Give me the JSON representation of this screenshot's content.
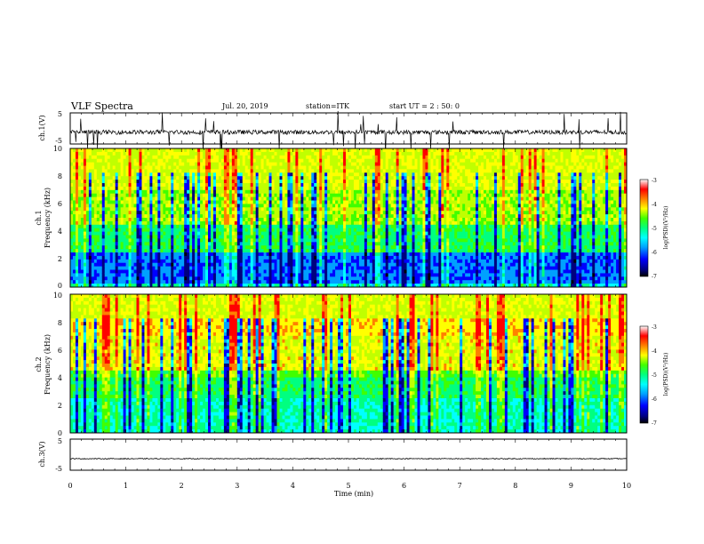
{
  "header": {
    "title": "VLF Spectra",
    "date": "Jul. 20, 2019",
    "station": "station=ITK",
    "start": "start UT = 2 : 50: 0"
  },
  "chart_data": [
    {
      "type": "line",
      "panel": "ch1-waveform",
      "ylabel": "ch.1(V)",
      "ylim": [
        -5,
        5
      ],
      "yticks": [
        "5",
        "-5"
      ],
      "xlim": [
        0,
        10
      ],
      "baseline": -1.2,
      "note": "noisy waveform with many impulsive spikes"
    },
    {
      "type": "heatmap",
      "panel": "ch1-spectrogram",
      "ylabel_line1": "ch.1",
      "ylabel_line2": "Frequency (kHz)",
      "ylim": [
        0,
        10
      ],
      "yticks": [
        "0",
        "2",
        "4",
        "6",
        "8",
        "10"
      ],
      "xlim": [
        0,
        10
      ],
      "colorbar": {
        "label": "log(PSD)(V²/Hz)",
        "range": [
          -7,
          -3
        ],
        "ticks": [
          "-3",
          "-4",
          "-5",
          "-6",
          "-7"
        ]
      }
    },
    {
      "type": "heatmap",
      "panel": "ch2-spectrogram",
      "ylabel_line1": "ch.2",
      "ylabel_line2": "Frequency (kHz)",
      "ylim": [
        0,
        10
      ],
      "yticks": [
        "0",
        "2",
        "4",
        "6",
        "8",
        "10"
      ],
      "xlim": [
        0,
        10
      ],
      "colorbar": {
        "label": "log(PSD)(V²/Hz)",
        "range": [
          -7,
          -3
        ],
        "ticks": [
          "-3",
          "-4",
          "-5",
          "-6",
          "-7"
        ]
      }
    },
    {
      "type": "line",
      "panel": "ch3-waveform",
      "ylabel": "ch.3(V)",
      "ylim": [
        -5,
        5
      ],
      "yticks": [
        "5",
        "-5"
      ],
      "xlim": [
        0,
        10
      ],
      "baseline": -1.3,
      "xlabel": "Time (min)",
      "xticks": [
        "0",
        "1",
        "2",
        "3",
        "4",
        "5",
        "6",
        "7",
        "8",
        "9",
        "10"
      ]
    }
  ],
  "colors": {
    "colormap": [
      "#000000",
      "#000080",
      "#0000ff",
      "#00a0ff",
      "#00ffff",
      "#00ff80",
      "#40ff00",
      "#c0ff00",
      "#ffff00",
      "#ff8000",
      "#ff0000",
      "#ffffff"
    ]
  }
}
